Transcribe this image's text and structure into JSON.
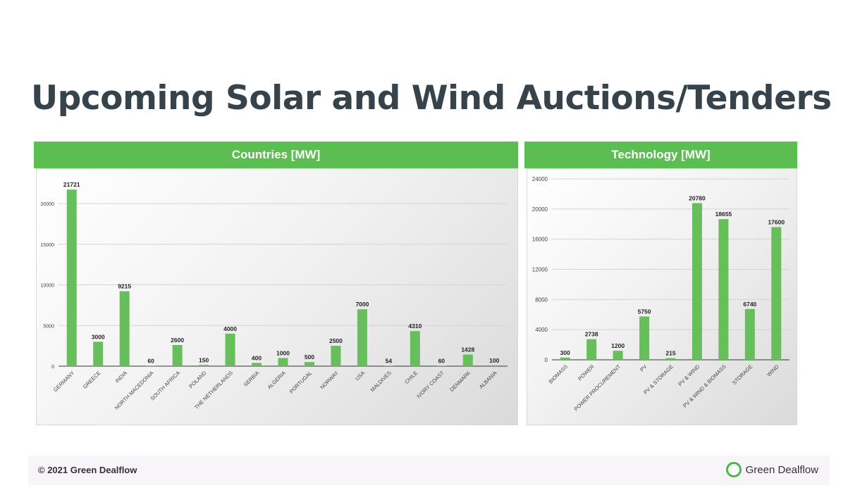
{
  "page": {
    "title": "Upcoming Solar and Wind Auctions/Tenders",
    "footer": {
      "copyright": "© 2021 Green Dealflow",
      "logo_text": "Green Dealflow"
    }
  },
  "colors": {
    "header": "#5cbd52",
    "bar": "#66bf5a",
    "title": "#36434b"
  },
  "chart_data": [
    {
      "type": "bar",
      "title": "Countries [MW]",
      "categories": [
        "GERMANY",
        "GREECE",
        "INDIA",
        "NORTH MACEDONIA",
        "SOUTH AFRICA",
        "POLAND",
        "THE NETHERLANDS",
        "SERBIA",
        "ALGERIA",
        "PORTUGAL",
        "NORWAY",
        "USA",
        "MALDIVES",
        "CHILE",
        "IVORY COAST",
        "DENMARK",
        "ALBANIA"
      ],
      "values": [
        21721,
        3000,
        9215,
        60,
        2600,
        150,
        4000,
        400,
        1000,
        500,
        2500,
        7000,
        54,
        4310,
        60,
        1428,
        100
      ],
      "yticks": [
        0,
        5000,
        10000,
        15000,
        20000
      ],
      "ylim": [
        0,
        22000
      ],
      "grid": true
    },
    {
      "type": "bar",
      "title": "Technology [MW]",
      "categories": [
        "BIOMASS",
        "POWER",
        "POWER PROCUREMENT",
        "PV",
        "PV & STORAGE",
        "PV & WIND",
        "PV & WIND & BIOMASS",
        "STORAGE",
        "WIND"
      ],
      "values": [
        300,
        2738,
        1200,
        5750,
        215,
        20780,
        18655,
        6740,
        17600
      ],
      "yticks": [
        0,
        4000,
        8000,
        12000,
        16000,
        20000,
        24000
      ],
      "ylim": [
        0,
        24000
      ],
      "grid": true
    }
  ]
}
